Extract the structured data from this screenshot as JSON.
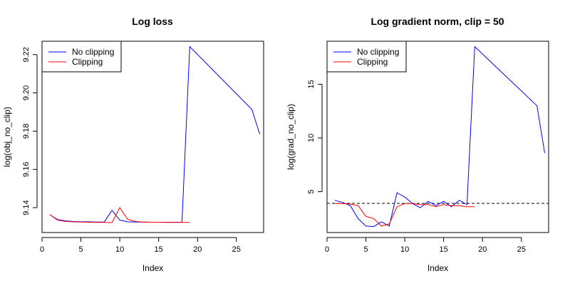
{
  "chart_data": [
    {
      "type": "line",
      "title": "Log loss",
      "xlabel": "Index",
      "ylabel": "log(obj_no_clip)",
      "xlim": [
        0,
        28.5
      ],
      "ylim": [
        9.127,
        9.227
      ],
      "xticks": [
        0,
        5,
        10,
        15,
        20,
        25
      ],
      "yticks": [
        9.14,
        9.16,
        9.18,
        9.2,
        9.22
      ],
      "grid": false,
      "legend_position": "top-left",
      "series": [
        {
          "name": "No clipping",
          "color": "#0000ff",
          "x": [
            1,
            2,
            3,
            4,
            5,
            6,
            7,
            8,
            9,
            10,
            11,
            12,
            13,
            14,
            15,
            16,
            17,
            18,
            19,
            27,
            28
          ],
          "y": [
            9.1363,
            9.1338,
            9.1331,
            9.1328,
            9.1326,
            9.1326,
            9.1325,
            9.1325,
            9.1386,
            9.1335,
            9.1326,
            9.1325,
            9.1325,
            9.1324,
            9.1324,
            9.1324,
            9.1324,
            9.1324,
            9.2242,
            9.1913,
            9.1785
          ]
        },
        {
          "name": "Clipping",
          "color": "#ff0000",
          "x": [
            1,
            2,
            3,
            4,
            5,
            6,
            7,
            8,
            9,
            10,
            11,
            12,
            13,
            14,
            15,
            16,
            17,
            18,
            19
          ],
          "y": [
            9.1363,
            9.1335,
            9.1328,
            9.1326,
            9.1325,
            9.1324,
            9.1323,
            9.1323,
            9.1322,
            9.14,
            9.134,
            9.1328,
            9.1325,
            9.1324,
            9.1324,
            9.1323,
            9.1323,
            9.1323,
            9.1323
          ]
        }
      ]
    },
    {
      "type": "line",
      "title": "Log gradient norm, clip = 50",
      "xlabel": "Index",
      "ylabel": "log(grad_no_clip)",
      "xlim": [
        0,
        28.5
      ],
      "ylim": [
        1.2,
        19.0
      ],
      "xticks": [
        0,
        5,
        10,
        15,
        20,
        25
      ],
      "yticks": [
        5,
        10,
        15
      ],
      "grid": false,
      "legend_position": "top-left",
      "reference_line": {
        "y": 3.912,
        "style": "dashed"
      },
      "series": [
        {
          "name": "No clipping",
          "color": "#0000ff",
          "x": [
            1,
            2,
            3,
            4,
            5,
            6,
            7,
            8,
            9,
            10,
            11,
            12,
            13,
            14,
            15,
            16,
            17,
            18,
            19,
            27,
            28
          ],
          "y": [
            4.2,
            4.0,
            3.7,
            2.5,
            1.8,
            1.75,
            2.2,
            1.8,
            4.9,
            4.5,
            3.9,
            3.5,
            4.1,
            3.7,
            4.1,
            3.6,
            4.2,
            3.8,
            18.5,
            13.0,
            8.6
          ]
        },
        {
          "name": "Clipping",
          "color": "#ff0000",
          "x": [
            1,
            2,
            3,
            4,
            5,
            6,
            7,
            8,
            9,
            10,
            11,
            12,
            13,
            14,
            15,
            16,
            17,
            18,
            19
          ],
          "y": [
            3.9,
            3.9,
            3.85,
            3.7,
            2.7,
            2.5,
            1.8,
            2.0,
            3.6,
            3.9,
            3.9,
            3.8,
            3.8,
            3.6,
            3.8,
            3.7,
            3.7,
            3.6,
            3.6
          ]
        }
      ]
    }
  ]
}
